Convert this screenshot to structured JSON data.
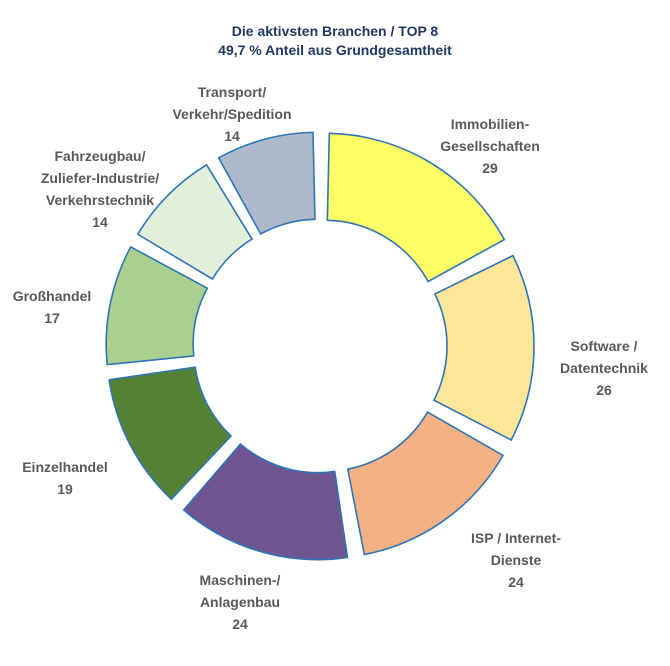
{
  "chart_data": {
    "type": "pie",
    "variant": "donut",
    "title": "Die aktivsten Branchen  / TOP 8",
    "subtitle": "49,7 %  Anteil aus Grundgesamtheit",
    "categories": [
      [
        "Immobilien-",
        "Gesellschaften"
      ],
      [
        "Software /",
        "Datentechnik"
      ],
      [
        "ISP / Internet-",
        "Dienste"
      ],
      [
        "Maschinen-/",
        "Anlagenbau"
      ],
      [
        "Einzelhandel"
      ],
      [
        "Großhandel"
      ],
      [
        "Fahrzeugbau/",
        "Zuliefer-Industrie/",
        "Verkehrstechnik"
      ],
      [
        "Transport/",
        "Verkehr/Spedition"
      ]
    ],
    "values": [
      29,
      26,
      24,
      24,
      19,
      17,
      14,
      14
    ],
    "colors": [
      "#ffff66",
      "#ffe699",
      "#f4b183",
      "#6f558f",
      "#548235",
      "#a9d08e",
      "#e2efda",
      "#adb9ca"
    ],
    "legend": "none",
    "grid": false
  }
}
